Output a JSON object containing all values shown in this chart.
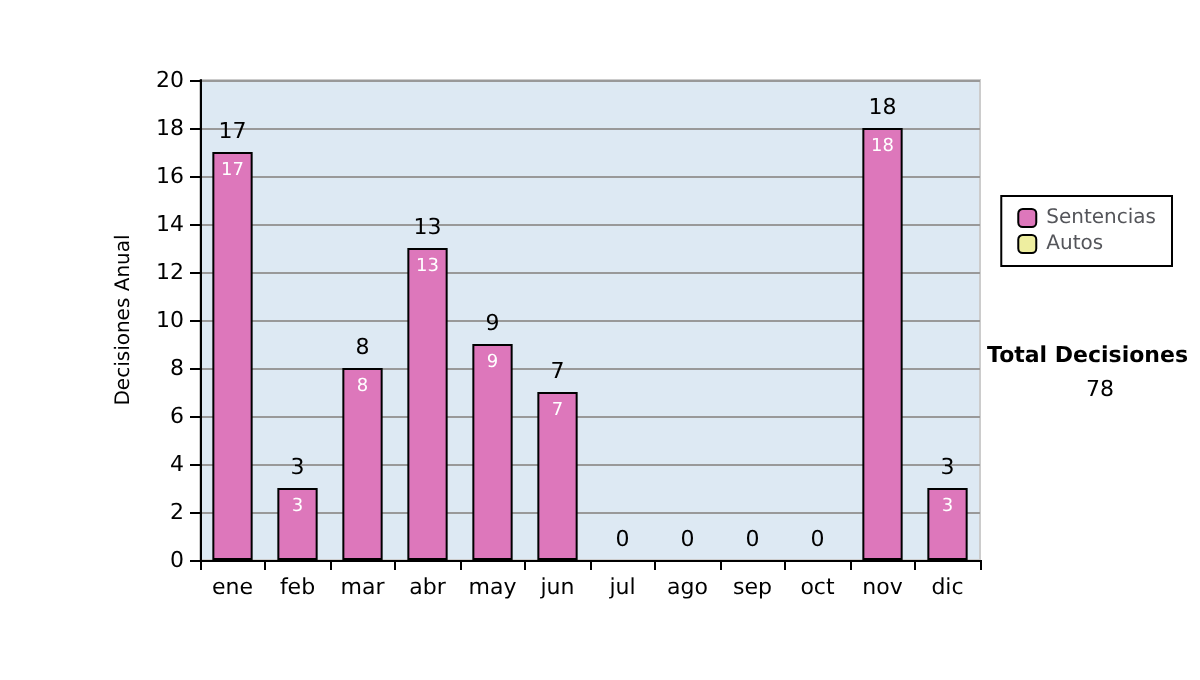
{
  "chart_data": {
    "type": "bar",
    "ylabel": "Decisiones Anual",
    "categories": [
      "ene",
      "feb",
      "mar",
      "abr",
      "may",
      "jun",
      "jul",
      "ago",
      "sep",
      "oct",
      "nov",
      "dic"
    ],
    "series": [
      {
        "name": "Sentencias",
        "color": "#dd77bb",
        "values": [
          17,
          3,
          8,
          13,
          9,
          7,
          0,
          0,
          0,
          0,
          18,
          3
        ],
        "value_labels": [
          "17",
          "3",
          "8",
          "13",
          "9",
          "7",
          null,
          null,
          null,
          null,
          "18",
          "3"
        ]
      },
      {
        "name": "Autos",
        "color": "#eeeea0",
        "values": [
          0,
          0,
          0,
          0,
          0,
          0,
          0,
          0,
          0,
          0,
          0,
          0
        ]
      }
    ],
    "stacked": true,
    "totals": [
      "17",
      "3",
      "8",
      "13",
      "9",
      "7",
      "0",
      "0",
      "0",
      "0",
      "18",
      "3"
    ],
    "ylim": [
      0,
      20
    ],
    "yticks": [
      0,
      2,
      4,
      6,
      8,
      10,
      12,
      14,
      16,
      18,
      20
    ],
    "grid": "y",
    "legend": "right",
    "annotations": [
      "Total Decisiones",
      "78"
    ]
  }
}
